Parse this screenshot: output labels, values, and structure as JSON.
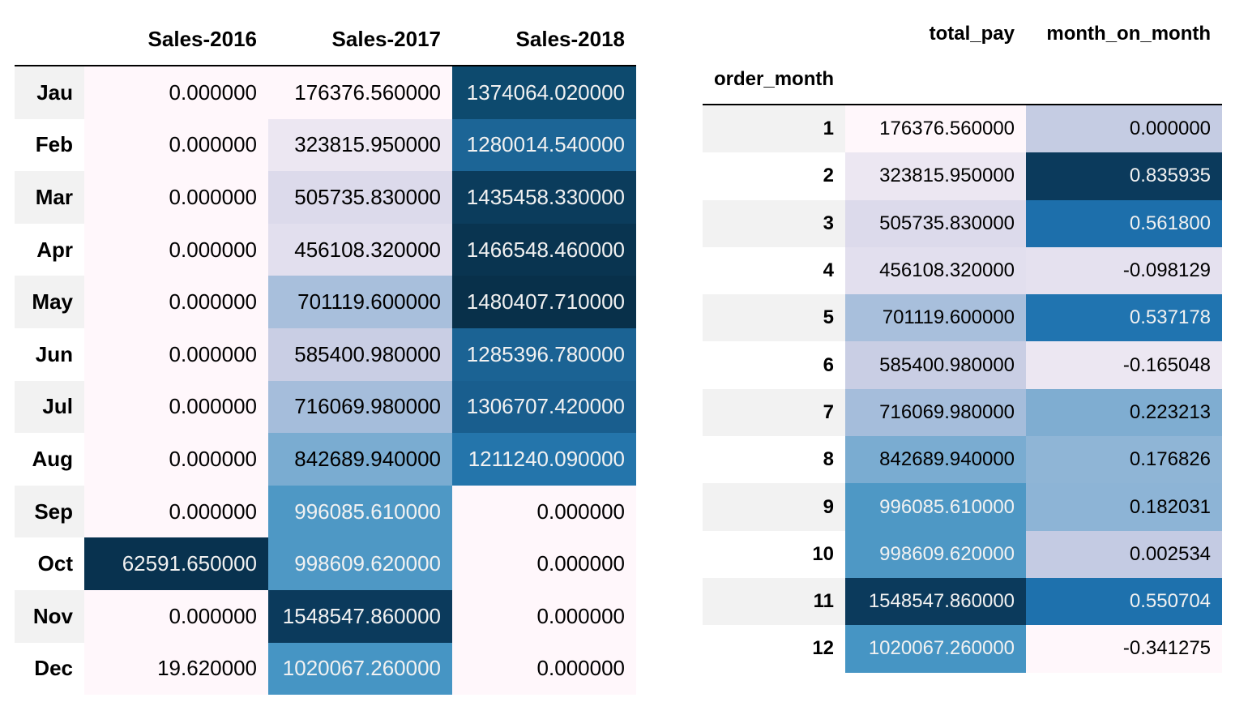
{
  "left_table": {
    "columns": [
      "Sales-2016",
      "Sales-2017",
      "Sales-2018"
    ],
    "rows": [
      {
        "label": "Jau",
        "values": [
          "0.000000",
          "176376.560000",
          "1374064.020000"
        ],
        "colors": [
          "#fff7fb",
          "#fff7fb",
          "#0d4a6e"
        ]
      },
      {
        "label": "Feb",
        "values": [
          "0.000000",
          "323815.950000",
          "1280014.540000"
        ],
        "colors": [
          "#fff7fb",
          "#ece7f2",
          "#1c6596"
        ]
      },
      {
        "label": "Mar",
        "values": [
          "0.000000",
          "505735.830000",
          "1435458.330000"
        ],
        "colors": [
          "#fff7fb",
          "#dcdaeb",
          "#0b3c5c"
        ]
      },
      {
        "label": "Apr",
        "values": [
          "0.000000",
          "456108.320000",
          "1466548.460000"
        ],
        "colors": [
          "#fff7fb",
          "#e2dfee",
          "#093450"
        ]
      },
      {
        "label": "May",
        "values": [
          "0.000000",
          "701119.600000",
          "1480407.710000"
        ],
        "colors": [
          "#fff7fb",
          "#a8bfdc",
          "#08304a"
        ]
      },
      {
        "label": "Jun",
        "values": [
          "0.000000",
          "585400.980000",
          "1285396.780000"
        ],
        "colors": [
          "#fff7fb",
          "#c9cee4",
          "#1b6394"
        ]
      },
      {
        "label": "Jul",
        "values": [
          "0.000000",
          "716069.980000",
          "1306707.420000"
        ],
        "colors": [
          "#fff7fb",
          "#a5bddb",
          "#195e8e"
        ]
      },
      {
        "label": "Aug",
        "values": [
          "0.000000",
          "842689.940000",
          "1211240.090000"
        ],
        "colors": [
          "#fff7fb",
          "#7aacd1",
          "#2475ab"
        ]
      },
      {
        "label": "Sep",
        "values": [
          "0.000000",
          "996085.610000",
          "0.000000"
        ],
        "colors": [
          "#fff7fb",
          "#4e98c5",
          "#fff7fb"
        ]
      },
      {
        "label": "Oct",
        "values": [
          "62591.650000",
          "998609.620000",
          "0.000000"
        ],
        "colors": [
          "#08324f",
          "#4e98c5",
          "#fff7fb"
        ]
      },
      {
        "label": "Nov",
        "values": [
          "0.000000",
          "1548547.860000",
          "0.000000"
        ],
        "colors": [
          "#fff7fb",
          "#0b3a5c",
          "#fff7fb"
        ]
      },
      {
        "label": "Dec",
        "values": [
          "19.620000",
          "1020067.260000",
          "0.000000"
        ],
        "colors": [
          "#fff7fb",
          "#4695c4",
          "#fff7fb"
        ]
      }
    ]
  },
  "right_table": {
    "columns": [
      "total_pay",
      "month_on_month"
    ],
    "index_name": "order_month",
    "rows": [
      {
        "label": "1",
        "values": [
          "176376.560000",
          "0.000000"
        ],
        "colors": [
          "#fff7fb",
          "#c5cce3"
        ]
      },
      {
        "label": "2",
        "values": [
          "323815.950000",
          "0.835935"
        ],
        "colors": [
          "#ece7f2",
          "#0b3a5c"
        ]
      },
      {
        "label": "3",
        "values": [
          "505735.830000",
          "0.561800"
        ],
        "colors": [
          "#dcdaeb",
          "#1d6fab"
        ]
      },
      {
        "label": "4",
        "values": [
          "456108.320000",
          "-0.098129"
        ],
        "colors": [
          "#e2dfee",
          "#e5e1ef"
        ]
      },
      {
        "label": "5",
        "values": [
          "701119.600000",
          "0.537178"
        ],
        "colors": [
          "#a8bfdc",
          "#2074b0"
        ]
      },
      {
        "label": "6",
        "values": [
          "585400.980000",
          "-0.165048"
        ],
        "colors": [
          "#c9cee4",
          "#ece7f2"
        ]
      },
      {
        "label": "7",
        "values": [
          "716069.980000",
          "0.223213"
        ],
        "colors": [
          "#a5bddb",
          "#7fadd1"
        ]
      },
      {
        "label": "8",
        "values": [
          "842689.940000",
          "0.176826"
        ],
        "colors": [
          "#7aacd1",
          "#8fb5d6"
        ]
      },
      {
        "label": "9",
        "values": [
          "996085.610000",
          "0.182031"
        ],
        "colors": [
          "#4e98c5",
          "#8db4d6"
        ]
      },
      {
        "label": "10",
        "values": [
          "998609.620000",
          "0.002534"
        ],
        "colors": [
          "#4e98c5",
          "#c4cbe3"
        ]
      },
      {
        "label": "11",
        "values": [
          "1548547.860000",
          "0.550704"
        ],
        "colors": [
          "#0b3a5c",
          "#1e71ad"
        ]
      },
      {
        "label": "12",
        "values": [
          "1020067.260000",
          "-0.341275"
        ],
        "colors": [
          "#4695c4",
          "#fff7fb"
        ]
      }
    ]
  }
}
